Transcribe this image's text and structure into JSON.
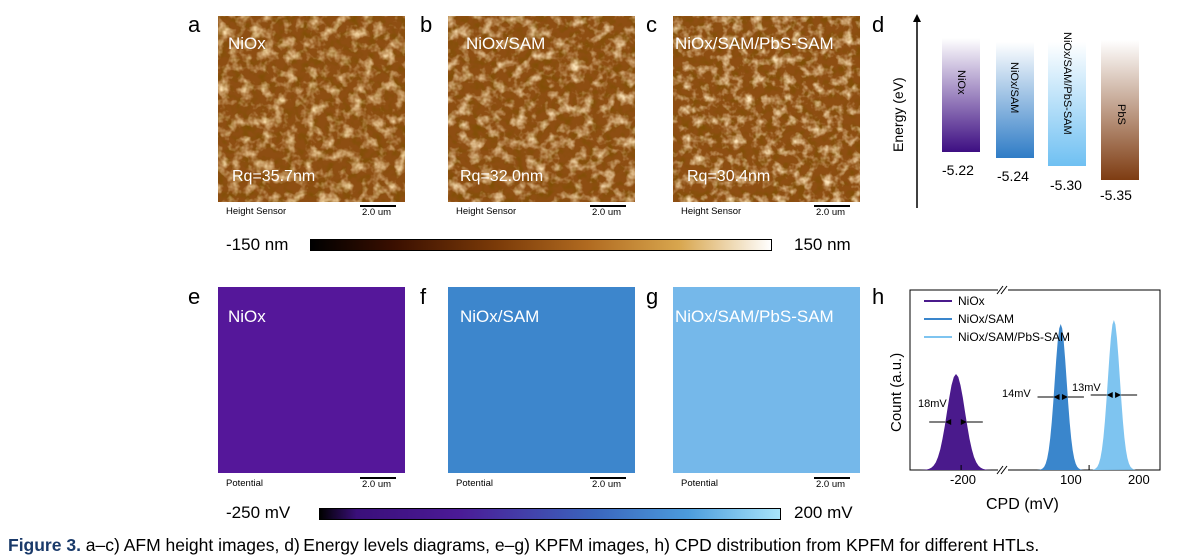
{
  "panels": {
    "a": {
      "letter": "a",
      "label": "NiOx",
      "rq": "Rq=35.7nm",
      "caption": "Height Sensor",
      "scale": "2.0 um"
    },
    "b": {
      "letter": "b",
      "label": "NiOx/SAM",
      "rq": "Rq=32.0nm",
      "caption": "Height Sensor",
      "scale": "2.0 um"
    },
    "c": {
      "letter": "c",
      "label": "NiOx/SAM/PbS-SAM",
      "rq": "Rq=30.4nm",
      "caption": "Height Sensor",
      "scale": "2.0 um"
    },
    "d": {
      "letter": "d"
    },
    "e": {
      "letter": "e",
      "label": "NiOx",
      "caption": "Potential",
      "scale": "2.0 um",
      "color": "#55179a"
    },
    "f": {
      "letter": "f",
      "label": "NiOx/SAM",
      "caption": "Potential",
      "scale": "2.0 um",
      "color": "#3d86cc"
    },
    "g": {
      "letter": "g",
      "label": "NiOx/SAM/PbS-SAM",
      "caption": "Potential",
      "scale": "2.0 um",
      "color": "#75b8ea"
    },
    "h": {
      "letter": "h"
    }
  },
  "height_colorbar": {
    "min": "-150 nm",
    "max": "150 nm"
  },
  "potential_colorbar": {
    "min": "-250 mV",
    "max": "200 mV"
  },
  "energy_diagram": {
    "ylabel": "Energy (eV)",
    "bars": [
      {
        "label": "NiOx",
        "value": "-5.22",
        "color": "#4a1a8c"
      },
      {
        "label": "NiOx/SAM",
        "value": "-5.24",
        "color": "#3a86cc"
      },
      {
        "label": "NiOx/SAM/PbS-SAM",
        "value": "-5.30",
        "color": "#7ec4f0"
      },
      {
        "label": "PbS",
        "value": "-5.35",
        "color": "#8a4a20"
      }
    ]
  },
  "chart_data": {
    "type": "area",
    "title": "",
    "xlabel": "CPD (mV)",
    "ylabel": "Count (a.u.)",
    "x_ticks": [
      "-200",
      "100",
      "200"
    ],
    "axis_break": true,
    "legend_position": "top-left",
    "series": [
      {
        "name": "NiOx",
        "center_mV": -210,
        "fwhm_label": "18mV",
        "color": "#4a1a8c"
      },
      {
        "name": "NiOx/SAM",
        "center_mV": 60,
        "fwhm_label": "14mV",
        "color": "#3a86cc"
      },
      {
        "name": "NiOx/SAM/PbS-SAM",
        "center_mV": 135,
        "fwhm_label": "13mV",
        "color": "#7ec4f0"
      }
    ]
  },
  "caption": {
    "bold": "Figure 3.",
    "text": " a–c) AFM height images, d) Energy levels diagrams, e–g) KPFM images, h) CPD distribution from KPFM for different HTLs."
  }
}
